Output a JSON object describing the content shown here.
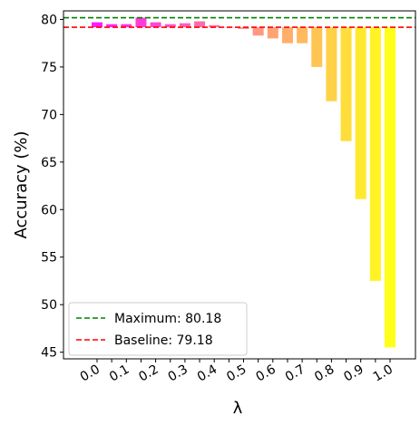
{
  "chart_data": {
    "type": "bar",
    "xlabel": "λ",
    "ylabel": "Accuracy (%)",
    "categories": [
      "0.0",
      null,
      "0.1",
      null,
      "0.2",
      null,
      "0.3",
      null,
      "0.4",
      null,
      "0.5",
      null,
      "0.6",
      null,
      "0.7",
      null,
      "0.8",
      null,
      "0.9",
      null,
      "1.0"
    ],
    "values": [
      79.7,
      79.5,
      79.5,
      80.18,
      79.7,
      79.5,
      79.6,
      79.8,
      79.4,
      79.2,
      79.0,
      78.3,
      78.0,
      77.5,
      77.5,
      75.0,
      71.4,
      67.2,
      61.1,
      52.5,
      45.5
    ],
    "colors": [
      "#ff00ff",
      "#ff0df2",
      "#ff1ae5",
      "#ff26d9",
      "#ff33cc",
      "#ff40bf",
      "#ff4db2",
      "#ff59a6",
      "#ff6699",
      "#ff738c",
      "#ff8080",
      "#ff8c73",
      "#ff9966",
      "#ffa659",
      "#ffb24d",
      "#ffbf40",
      "#ffcc33",
      "#ffd926",
      "#ffe51a",
      "#fff20d",
      "#ffff00"
    ],
    "reference_lines": [
      {
        "name": "Maximum: 80.18",
        "value": 80.18,
        "color": "#008000"
      },
      {
        "name": "Baseline: 79.18",
        "value": 79.18,
        "color": "#ff0000"
      }
    ],
    "ylim": [
      44.3,
      80.9
    ],
    "yticks": [
      45,
      50,
      55,
      60,
      65,
      70,
      75,
      80
    ],
    "legend": "lower left"
  }
}
